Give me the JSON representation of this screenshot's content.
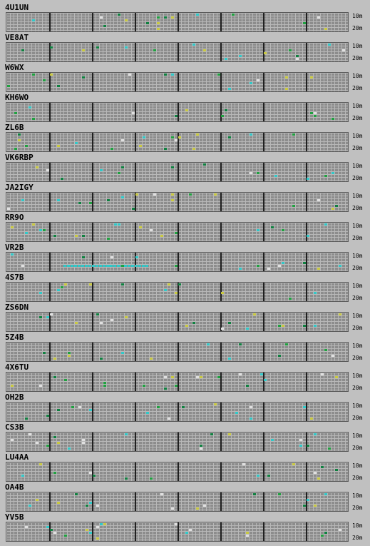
{
  "bands": {
    "top": "10m",
    "bottom": "20m"
  },
  "colors": {
    "grid_bg": "#8c8c8c",
    "grid_line": "#b8b8b8",
    "hour_line": "#202020",
    "yellow": "#c8c840",
    "cyan": "#30c8c8",
    "green": "#20a040",
    "dark_green": "#108040",
    "white": "#e0e0e0"
  },
  "stations": [
    {
      "call": "4U1UN"
    },
    {
      "call": "VE8AT"
    },
    {
      "call": "W6WX"
    },
    {
      "call": "KH6WO"
    },
    {
      "call": "ZL6B"
    },
    {
      "call": "VK6RBP"
    },
    {
      "call": "JA2IGY"
    },
    {
      "call": "RR9O"
    },
    {
      "call": "VR2B"
    },
    {
      "call": "4S7B"
    },
    {
      "call": "ZS6DN"
    },
    {
      "call": "5Z4B"
    },
    {
      "call": "4X6TU"
    },
    {
      "call": "OH2B"
    },
    {
      "call": "CS3B"
    },
    {
      "call": "LU4AA"
    },
    {
      "call": "OA4B"
    },
    {
      "call": "YV5B"
    }
  ]
}
